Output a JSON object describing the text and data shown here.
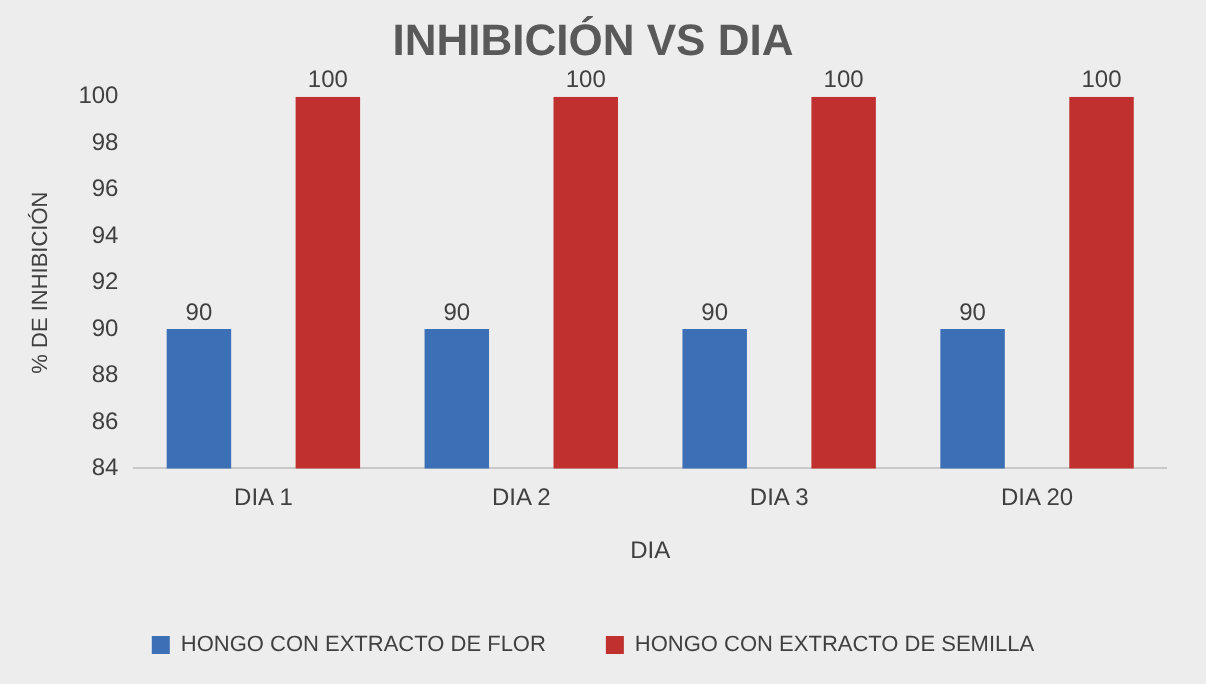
{
  "chart_data": {
    "type": "bar",
    "title": "INHIBICIÓN VS DIA",
    "xlabel": "DIA",
    "ylabel": "% DE INHIBICIÓN",
    "categories": [
      "DIA 1",
      "DIA 2",
      "DIA 3",
      "DIA 20"
    ],
    "series": [
      {
        "name": "HONGO CON EXTRACTO DE FLOR",
        "color": "#3b6fb6",
        "values": [
          90,
          90,
          90,
          90
        ]
      },
      {
        "name": "HONGO CON EXTRACTO DE SEMILLA",
        "color": "#c0302f",
        "values": [
          100,
          100,
          100,
          100
        ]
      }
    ],
    "ylim": [
      84,
      100
    ],
    "yticks": [
      84,
      86,
      88,
      90,
      92,
      94,
      96,
      98,
      100
    ],
    "grid": false,
    "legend": "bottom",
    "data_labels": true
  }
}
